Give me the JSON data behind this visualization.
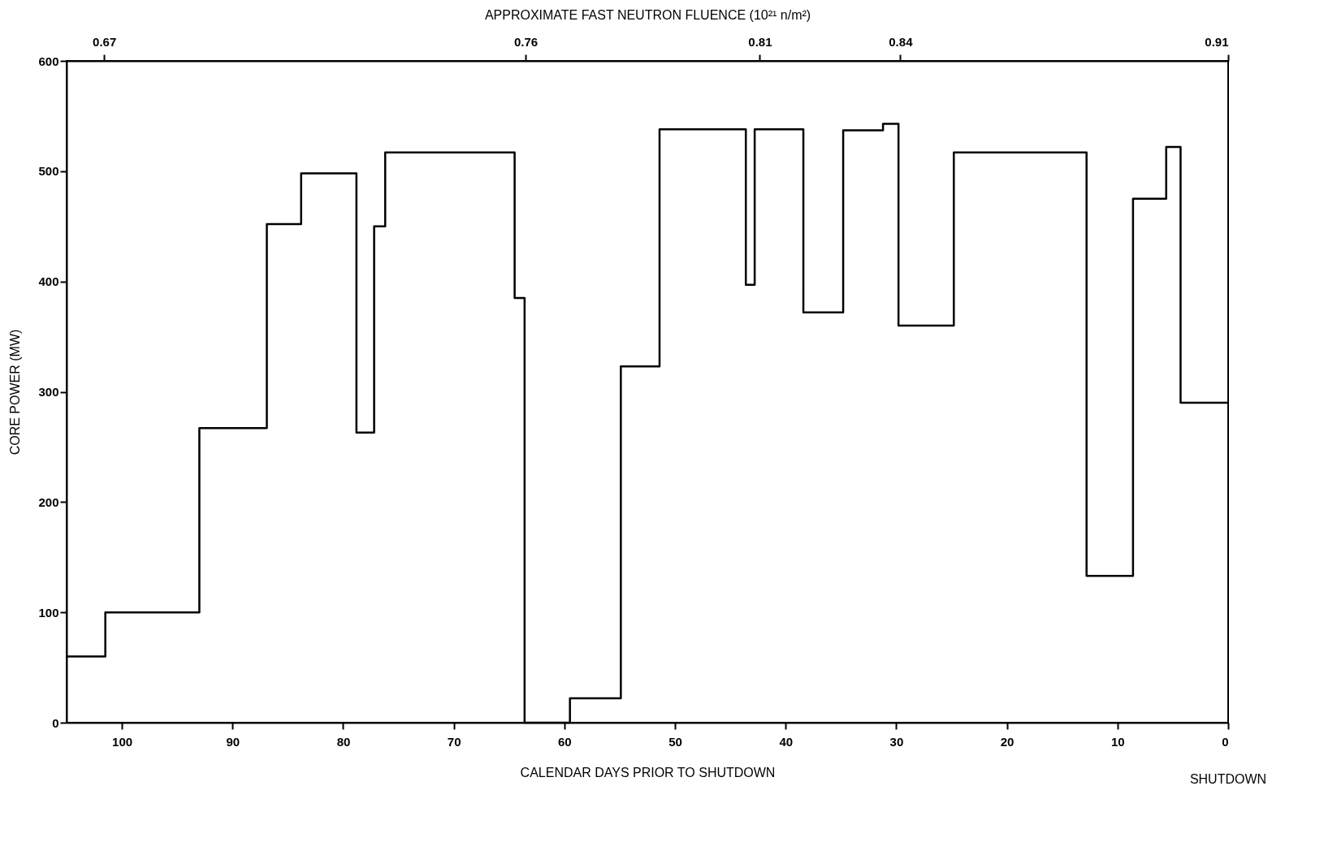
{
  "chart_data": {
    "type": "step",
    "xlabel": "CALENDAR DAYS PRIOR TO SHUTDOWN",
    "ylabel": "CORE POWER (MW)",
    "x2label": "APPROXIMATE FAST NEUTRON FLUENCE (10²¹ n/m²)",
    "x": [
      105,
      101.5,
      93,
      86.9,
      83.8,
      78.8,
      77.2,
      76.2,
      64.5,
      63.6,
      59.5,
      54.9,
      51.4,
      43.6,
      42.8,
      38.4,
      34.8,
      31.2,
      29.8,
      24.8,
      12.8,
      8.6,
      5.6,
      4.3,
      0
    ],
    "series": [
      {
        "color": "#000000",
        "values": [
          60,
          100,
          267,
          452,
          498,
          263,
          450,
          517,
          385,
          0,
          22,
          323,
          538,
          397,
          538,
          372,
          537,
          543,
          360,
          517,
          133,
          475,
          522,
          290,
          290
        ]
      }
    ],
    "xlim": [
      105,
      0
    ],
    "xticks": [
      100,
      90,
      80,
      70,
      60,
      50,
      40,
      30,
      20,
      10,
      0
    ],
    "x2lim": [
      0.662,
      0.91
    ],
    "x2ticks": [
      0.67,
      0.76,
      0.81,
      0.84,
      0.91
    ],
    "ylim": [
      0,
      600
    ],
    "yticks": [
      0,
      100,
      200,
      300,
      400,
      500,
      600
    ],
    "grid": false,
    "marker": "none",
    "line_style": "solid",
    "annotations": [
      "SHUTDOWN"
    ]
  }
}
